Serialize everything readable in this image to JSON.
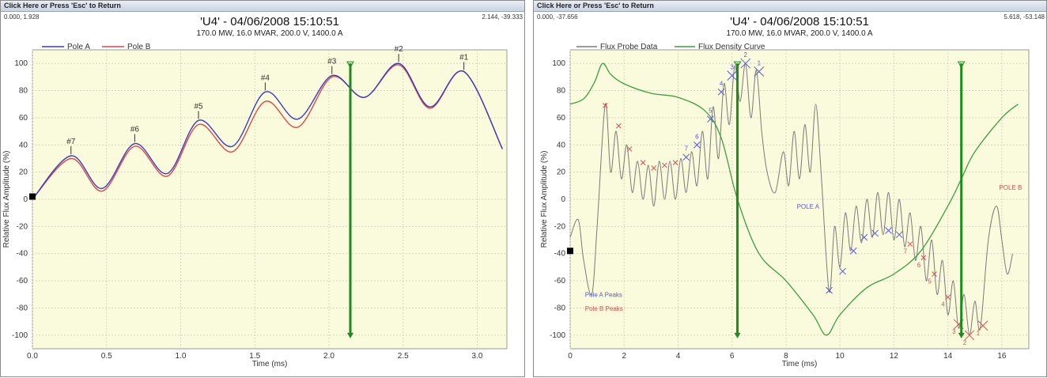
{
  "return_label": "Click Here or Press 'Esc' to Return",
  "charts": [
    {
      "corner_left": "0.000, 1.928",
      "corner_right": "2.144, -39.333",
      "title": "'U4'     - 04/06/2008 15:10:51",
      "subtitle": "170.0 MW, 16.0 MVAR, 200.0 V, 1400.0 A",
      "xlabel": "Time (ms)",
      "ylabel": "Relative Flux Amplitude (%)",
      "xticks": [
        "0.0",
        "0.5",
        "1.0",
        "1.5",
        "2.0",
        "2.5",
        "3.0"
      ],
      "yticks": [
        "100",
        "80",
        "60",
        "40",
        "20",
        "0",
        "-20",
        "-40",
        "-60",
        "-80",
        "-100"
      ],
      "legend": [
        "Pole A",
        "Pole B"
      ],
      "peak_labels": [
        "#7",
        "#6",
        "#5",
        "#4",
        "#3",
        "#2",
        "#1"
      ]
    },
    {
      "corner_left": "0.000, -37.656",
      "corner_right": "5.618, -53.148",
      "title": "'U4'     - 04/06/2008 15:10:51",
      "subtitle": "170.0 MW, 16.0 MVAR, 200.0 V, 1400.0 A",
      "xlabel": "Time (ms)",
      "ylabel": "Relative Flux Amplitude (%)",
      "xticks": [
        "0",
        "2",
        "4",
        "6",
        "8",
        "10",
        "12",
        "14",
        "16"
      ],
      "yticks": [
        "100",
        "80",
        "60",
        "40",
        "20",
        "0",
        "-20",
        "-40",
        "-60",
        "-80",
        "-100"
      ],
      "legend": [
        "Flux Probe Data",
        "Flux Density Curve"
      ],
      "annotations": {
        "pole_a": "POLE A",
        "pole_b": "POLE B",
        "pole_a_peaks": "Pole A Peaks",
        "pole_b_peaks": "Pole B Peaks"
      },
      "peak_labels_a": [
        "7",
        "6",
        "5",
        "4",
        "3",
        "2",
        "1"
      ],
      "peak_labels_b": [
        "7",
        "6",
        "5",
        "4",
        "3",
        "2",
        "1"
      ]
    }
  ],
  "chart_data": [
    {
      "type": "line",
      "xlim": [
        0,
        3.2
      ],
      "ylim": [
        -110,
        110
      ],
      "grid": true,
      "legend_position": "top-left",
      "colors": {
        "pole_a": "#3b3bbf",
        "pole_b": "#d84a4a",
        "cursor": "#1f8a1f",
        "plot_bg": "#fafadc"
      },
      "peaks": [
        {
          "label": "#7",
          "x": 0.26,
          "a": 32,
          "b": 30
        },
        {
          "label": "#6",
          "x": 0.69,
          "a": 41,
          "b": 39
        },
        {
          "label": "#5",
          "x": 1.12,
          "a": 58,
          "b": 55
        },
        {
          "label": "#4",
          "x": 1.57,
          "a": 79,
          "b": 72
        },
        {
          "label": "#3",
          "x": 2.02,
          "a": 91,
          "b": 90
        },
        {
          "label": "#2",
          "x": 2.47,
          "a": 100,
          "b": 99
        },
        {
          "label": "#1",
          "x": 2.91,
          "a": 94,
          "b": 94
        }
      ],
      "troughs_a": [
        [
          0,
          0
        ],
        [
          0.47,
          8
        ],
        [
          0.91,
          19
        ],
        [
          1.35,
          39
        ],
        [
          1.79,
          59
        ],
        [
          2.24,
          75
        ],
        [
          2.68,
          68
        ],
        [
          3.17,
          37
        ]
      ],
      "troughs_b": [
        [
          0,
          0
        ],
        [
          0.47,
          6
        ],
        [
          0.91,
          17
        ],
        [
          1.35,
          35
        ],
        [
          1.79,
          53
        ],
        [
          2.24,
          75
        ],
        [
          2.68,
          67
        ],
        [
          3.17,
          37
        ]
      ],
      "cursor": {
        "x": 2.144,
        "y_top": 100,
        "y_bottom": -100
      },
      "marker": {
        "x": 0,
        "y": 2
      }
    },
    {
      "type": "line",
      "xlim": [
        0,
        17
      ],
      "ylim": [
        -110,
        110
      ],
      "grid": true,
      "legend_position": "top-left",
      "colors": {
        "probe": "#7a7a7a",
        "density": "#3f9e3f",
        "pole_a_peaks": "#5a5ad6",
        "pole_b_peaks": "#d65050",
        "cursor": "#1f8a1f",
        "plot_bg": "#fafadc"
      },
      "density_curve": [
        [
          0,
          70
        ],
        [
          0.5,
          74
        ],
        [
          0.9,
          86
        ],
        [
          1.2,
          100
        ],
        [
          1.5,
          92
        ],
        [
          2,
          85
        ],
        [
          3,
          78
        ],
        [
          4,
          75
        ],
        [
          5,
          65
        ],
        [
          5.6,
          45
        ],
        [
          6.2,
          0
        ],
        [
          7,
          -40
        ],
        [
          8,
          -60
        ],
        [
          9,
          -85
        ],
        [
          9.5,
          -100
        ],
        [
          10,
          -85
        ],
        [
          11,
          -65
        ],
        [
          12,
          -55
        ],
        [
          13,
          -38
        ],
        [
          14,
          -5
        ],
        [
          14.5,
          15
        ],
        [
          15,
          35
        ],
        [
          16,
          60
        ],
        [
          16.6,
          70
        ]
      ],
      "probe_data": [
        [
          0,
          -28
        ],
        [
          0.3,
          -15
        ],
        [
          0.5,
          -45
        ],
        [
          0.8,
          -70
        ],
        [
          1.0,
          -20
        ],
        [
          1.3,
          70
        ],
        [
          1.5,
          20
        ],
        [
          1.7,
          50
        ],
        [
          1.9,
          15
        ],
        [
          2.1,
          40
        ],
        [
          2.3,
          5
        ],
        [
          2.5,
          28
        ],
        [
          2.7,
          0
        ],
        [
          2.9,
          25
        ],
        [
          3.1,
          -5
        ],
        [
          3.3,
          28
        ],
        [
          3.5,
          0
        ],
        [
          3.7,
          28
        ],
        [
          3.9,
          0
        ],
        [
          4.1,
          30
        ],
        [
          4.3,
          5
        ],
        [
          4.5,
          35
        ],
        [
          4.7,
          10
        ],
        [
          4.9,
          50
        ],
        [
          5.1,
          15
        ],
        [
          5.3,
          68
        ],
        [
          5.5,
          30
        ],
        [
          5.7,
          85
        ],
        [
          5.9,
          55
        ],
        [
          6.1,
          98
        ],
        [
          6.3,
          72
        ],
        [
          6.5,
          100
        ],
        [
          6.7,
          60
        ],
        [
          6.9,
          95
        ],
        [
          7.1,
          50
        ],
        [
          7.3,
          20
        ],
        [
          7.6,
          5
        ],
        [
          7.9,
          35
        ],
        [
          8.1,
          10
        ],
        [
          8.3,
          50
        ],
        [
          8.5,
          15
        ],
        [
          8.7,
          55
        ],
        [
          8.9,
          20
        ],
        [
          9.1,
          70
        ],
        [
          9.3,
          20
        ],
        [
          9.6,
          -68
        ],
        [
          9.8,
          -20
        ],
        [
          10.0,
          -50
        ],
        [
          10.2,
          -10
        ],
        [
          10.4,
          -38
        ],
        [
          10.6,
          -5
        ],
        [
          10.8,
          -32
        ],
        [
          11.0,
          0
        ],
        [
          11.2,
          -28
        ],
        [
          11.4,
          5
        ],
        [
          11.6,
          -26
        ],
        [
          11.8,
          5
        ],
        [
          12.0,
          -30
        ],
        [
          12.2,
          0
        ],
        [
          12.4,
          -35
        ],
        [
          12.6,
          -10
        ],
        [
          12.8,
          -45
        ],
        [
          13.0,
          -20
        ],
        [
          13.2,
          -60
        ],
        [
          13.4,
          -30
        ],
        [
          13.6,
          -70
        ],
        [
          13.8,
          -45
        ],
        [
          14.0,
          -85
        ],
        [
          14.2,
          -60
        ],
        [
          14.4,
          -95
        ],
        [
          14.6,
          -70
        ],
        [
          14.8,
          -100
        ],
        [
          15.0,
          -75
        ],
        [
          15.2,
          -95
        ],
        [
          15.5,
          -30
        ],
        [
          15.8,
          -5
        ],
        [
          16.0,
          -30
        ],
        [
          16.2,
          -55
        ],
        [
          16.4,
          -40
        ]
      ],
      "pole_a_points": [
        [
          4.3,
          31
        ],
        [
          4.7,
          40
        ],
        [
          5.2,
          59
        ],
        [
          5.6,
          79
        ],
        [
          6.0,
          91
        ],
        [
          6.5,
          100
        ],
        [
          7.0,
          94
        ],
        [
          9.6,
          -67
        ],
        [
          10.1,
          -53
        ],
        [
          10.5,
          -38
        ],
        [
          10.9,
          -28
        ],
        [
          11.3,
          -25
        ],
        [
          11.8,
          -23
        ],
        [
          12.2,
          -26
        ]
      ],
      "pole_b_points": [
        [
          1.3,
          69
        ],
        [
          1.8,
          54
        ],
        [
          2.2,
          37
        ],
        [
          2.7,
          27
        ],
        [
          3.1,
          23
        ],
        [
          3.5,
          25
        ],
        [
          3.9,
          27
        ],
        [
          12.6,
          -33
        ],
        [
          13.1,
          -43
        ],
        [
          13.5,
          -55
        ],
        [
          14.0,
          -72
        ],
        [
          14.4,
          -92
        ],
        [
          14.8,
          -100
        ],
        [
          15.3,
          -93
        ]
      ],
      "peak_labels_a": [
        [
          4.3,
          31,
          "7"
        ],
        [
          4.7,
          40,
          "6"
        ],
        [
          5.2,
          59,
          "5"
        ],
        [
          5.6,
          79,
          "4"
        ],
        [
          6.0,
          91,
          "3"
        ],
        [
          6.5,
          100,
          "2"
        ],
        [
          7.0,
          94,
          "1"
        ]
      ],
      "peak_labels_b": [
        [
          12.6,
          -33,
          "7"
        ],
        [
          13.1,
          -43,
          "6"
        ],
        [
          13.5,
          -55,
          "5"
        ],
        [
          14.0,
          -72,
          "4"
        ],
        [
          14.4,
          -92,
          "3"
        ],
        [
          14.8,
          -100,
          "2"
        ],
        [
          15.3,
          -93,
          "1"
        ]
      ],
      "cursors": [
        {
          "x": 6.2,
          "y_top": 100,
          "y_bottom": -100
        },
        {
          "x": 14.5,
          "y_top": 100,
          "y_bottom": -100
        }
      ],
      "marker": {
        "x": 0,
        "y": -38
      }
    }
  ]
}
